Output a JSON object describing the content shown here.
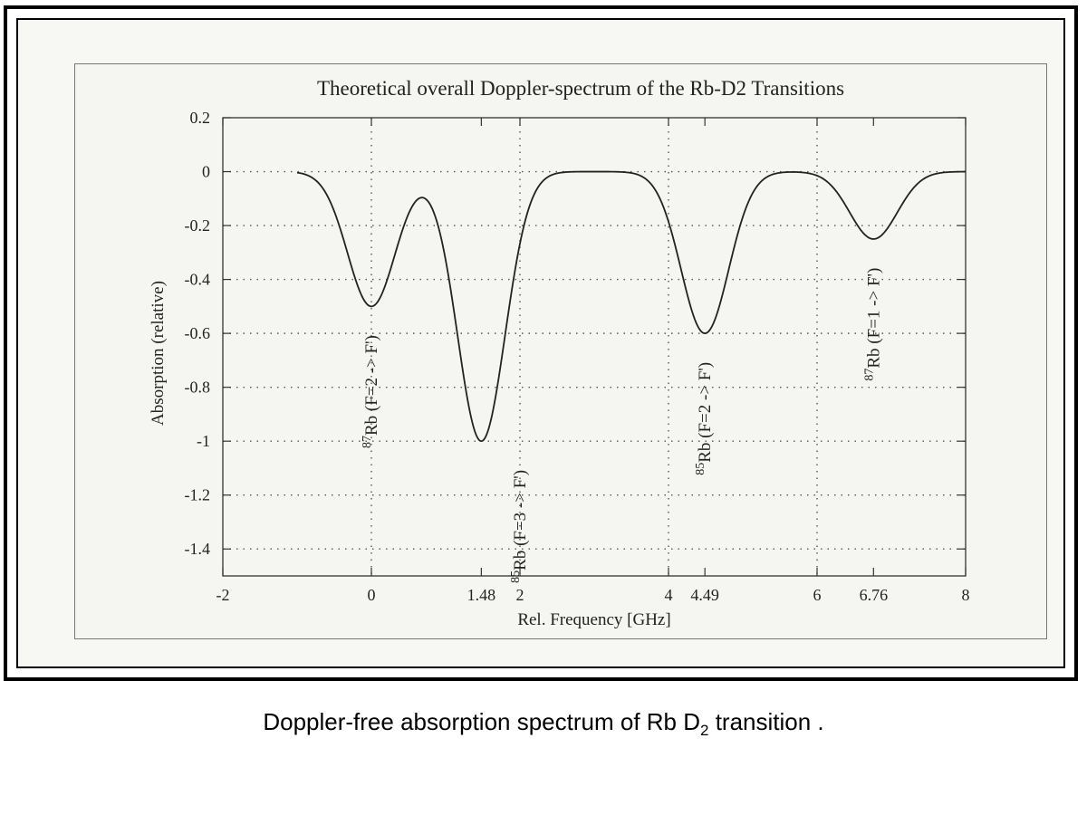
{
  "caption": {
    "before": "Doppler-free absorption spectrum of Rb D",
    "subscript": "2",
    "after": " transition ."
  },
  "chart_data": {
    "type": "line",
    "title": "Theoretical overall Doppler-spectrum of the Rb-D2 Transitions",
    "xlabel": "Rel. Frequency [GHz]",
    "ylabel": "Absorption (relative)",
    "xlim": [
      -2,
      8
    ],
    "ylim": [
      -1.5,
      0.2
    ],
    "grid": true,
    "x_ticks": [
      {
        "value": -2,
        "label": "-2"
      },
      {
        "value": 0,
        "label": "0"
      },
      {
        "value": 1.48,
        "label": "1.48"
      },
      {
        "value": 2,
        "label": "2"
      },
      {
        "value": 4,
        "label": "4"
      },
      {
        "value": 4.49,
        "label": "4.49"
      },
      {
        "value": 6,
        "label": "6"
      },
      {
        "value": 6.76,
        "label": "6.76"
      },
      {
        "value": 8,
        "label": "8"
      }
    ],
    "y_ticks": [
      {
        "value": 0.2,
        "label": "0.2"
      },
      {
        "value": 0,
        "label": "0"
      },
      {
        "value": -0.2,
        "label": "-0.2"
      },
      {
        "value": -0.4,
        "label": "-0.4"
      },
      {
        "value": -0.6,
        "label": "-0.6"
      },
      {
        "value": -0.8,
        "label": "-0.8"
      },
      {
        "value": -1,
        "label": "-1"
      },
      {
        "value": -1.2,
        "label": "-1.2"
      },
      {
        "value": -1.4,
        "label": "-1.4"
      }
    ],
    "x_gridlines": [
      0,
      2,
      4,
      6
    ],
    "y_gridlines": [
      0,
      -0.2,
      -0.4,
      -0.6,
      -0.8,
      -1,
      -1.2,
      -1.4
    ],
    "x_range": [
      -1,
      8
    ],
    "dips": [
      {
        "center": 0.0,
        "depth": 0.5
      },
      {
        "center": 1.48,
        "depth": 1.0
      },
      {
        "center": 4.49,
        "depth": 0.6
      },
      {
        "center": 6.76,
        "depth": 0.25
      }
    ],
    "peak_labels": [
      {
        "x": 0.0,
        "y": -0.6,
        "isotope": "87",
        "text": "Rb (F=2 -> F')"
      },
      {
        "x": 2.0,
        "y": -1.1,
        "isotope": "85",
        "text": "Rb (F=3 -> F')"
      },
      {
        "x": 4.49,
        "y": -0.7,
        "isotope": "85",
        "text": "Rb (F=2 -> F')"
      },
      {
        "x": 6.76,
        "y": -0.35,
        "isotope": "87",
        "text": "Rb (F=1 -> F')"
      }
    ],
    "line_color": "#222222"
  }
}
